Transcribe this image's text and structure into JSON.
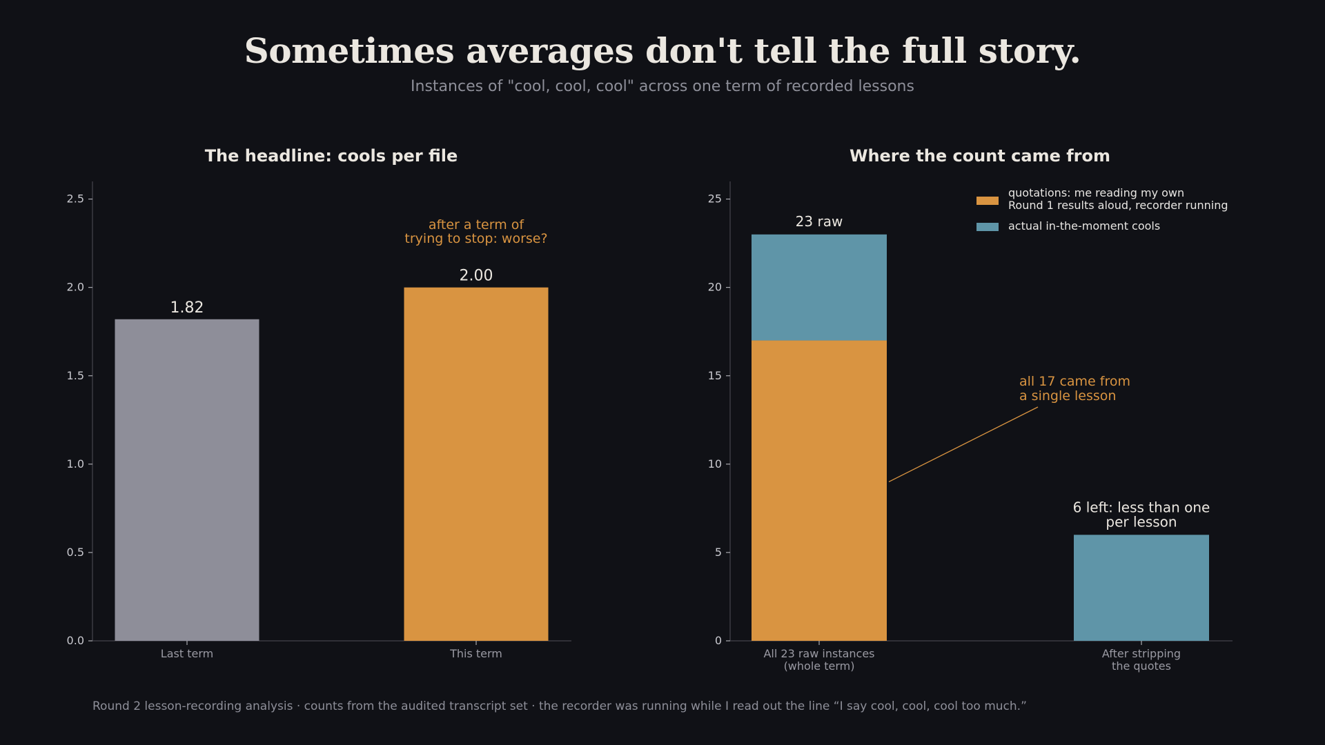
{
  "header": {
    "title": "Sometimes averages don't tell the full story.",
    "subtitle": "Instances of \"cool, cool, cool\" across one term of recorded lessons"
  },
  "footer": {
    "note": "Round 2 lesson-recording analysis · counts from the audited transcript set · the recorder was running while I read out the line “I say cool, cool, cool too much.”"
  },
  "colors": {
    "background": "#101116",
    "grey_bar": "#8e8e99",
    "orange": "#d99441",
    "blue": "#5f95a8",
    "annotation": "#d99441",
    "axis_text": "#c9c9cf",
    "category_text": "#9a9aa3"
  },
  "chart_data": [
    {
      "type": "bar",
      "title": "The headline: cools per file",
      "categories": [
        "Last term",
        "This term"
      ],
      "values": [
        1.82,
        2.0
      ],
      "value_labels": [
        "1.82",
        "2.00"
      ],
      "ylim": [
        0,
        2.6
      ],
      "yticks": [
        0.0,
        0.5,
        1.0,
        1.5,
        2.0,
        2.5
      ],
      "ytick_labels": [
        "0.0",
        "0.5",
        "1.0",
        "1.5",
        "2.0",
        "2.5"
      ],
      "bar_colors": [
        "#8e8e99",
        "#d99441"
      ],
      "annotation": {
        "lines": [
          "after a term of",
          "trying to stop: worse?"
        ],
        "x": "This term",
        "y": 2.35
      }
    },
    {
      "type": "bar",
      "stacked": true,
      "title": "Where the count came from",
      "categories": [
        "All 23 raw instances\n(whole term)",
        "After stripping\nthe quotes"
      ],
      "series": [
        {
          "name": "quotations: me reading my own\nRound 1 results aloud, recorder running",
          "values": [
            17,
            0
          ],
          "color": "#d99441"
        },
        {
          "name": "actual in-the-moment cools",
          "values": [
            6,
            6
          ],
          "color": "#5f95a8"
        }
      ],
      "ylim": [
        0,
        26
      ],
      "yticks": [
        0,
        5,
        10,
        15,
        20,
        25
      ],
      "ytick_labels": [
        "0",
        "5",
        "10",
        "15",
        "20",
        "25"
      ],
      "legend_position": "top-right",
      "bar_labels": [
        {
          "lines": [
            "23 raw"
          ],
          "category_index": 0,
          "y": 23
        },
        {
          "lines": [
            "6 left: less than one",
            "per lesson"
          ],
          "category_index": 1,
          "y": 6
        }
      ],
      "annotation": {
        "lines": [
          "all 17 came from",
          "a single lesson"
        ],
        "points_to": {
          "category_index": 0,
          "y": 9
        }
      }
    }
  ]
}
